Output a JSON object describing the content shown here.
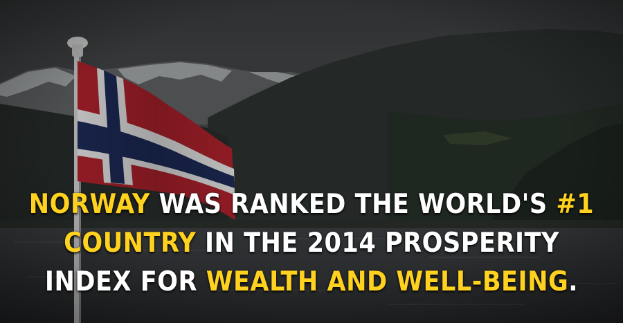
{
  "caption": {
    "line1": [
      {
        "text": "NORWAY",
        "highlight": true
      },
      {
        "text": " WAS RANKED THE WORLD'S ",
        "highlight": false
      },
      {
        "text": "#1",
        "highlight": true
      }
    ],
    "line2": [
      {
        "text": "COUNTRY",
        "highlight": true
      },
      {
        "text": " IN THE 2014 PROSPERITY",
        "highlight": false
      }
    ],
    "line3": [
      {
        "text": "INDEX FOR ",
        "highlight": false
      },
      {
        "text": "WEALTH AND WELL-BEING",
        "highlight": true
      },
      {
        "text": ".",
        "highlight": false
      }
    ]
  },
  "colors": {
    "highlight": "#ffd21f",
    "text": "#ffffff",
    "flag_red": "#b8242f",
    "flag_blue": "#1f2d5c",
    "flag_white": "#f1f1f1"
  },
  "scene": {
    "subject": "norwegian-flag",
    "background": "fjord-mountains"
  }
}
